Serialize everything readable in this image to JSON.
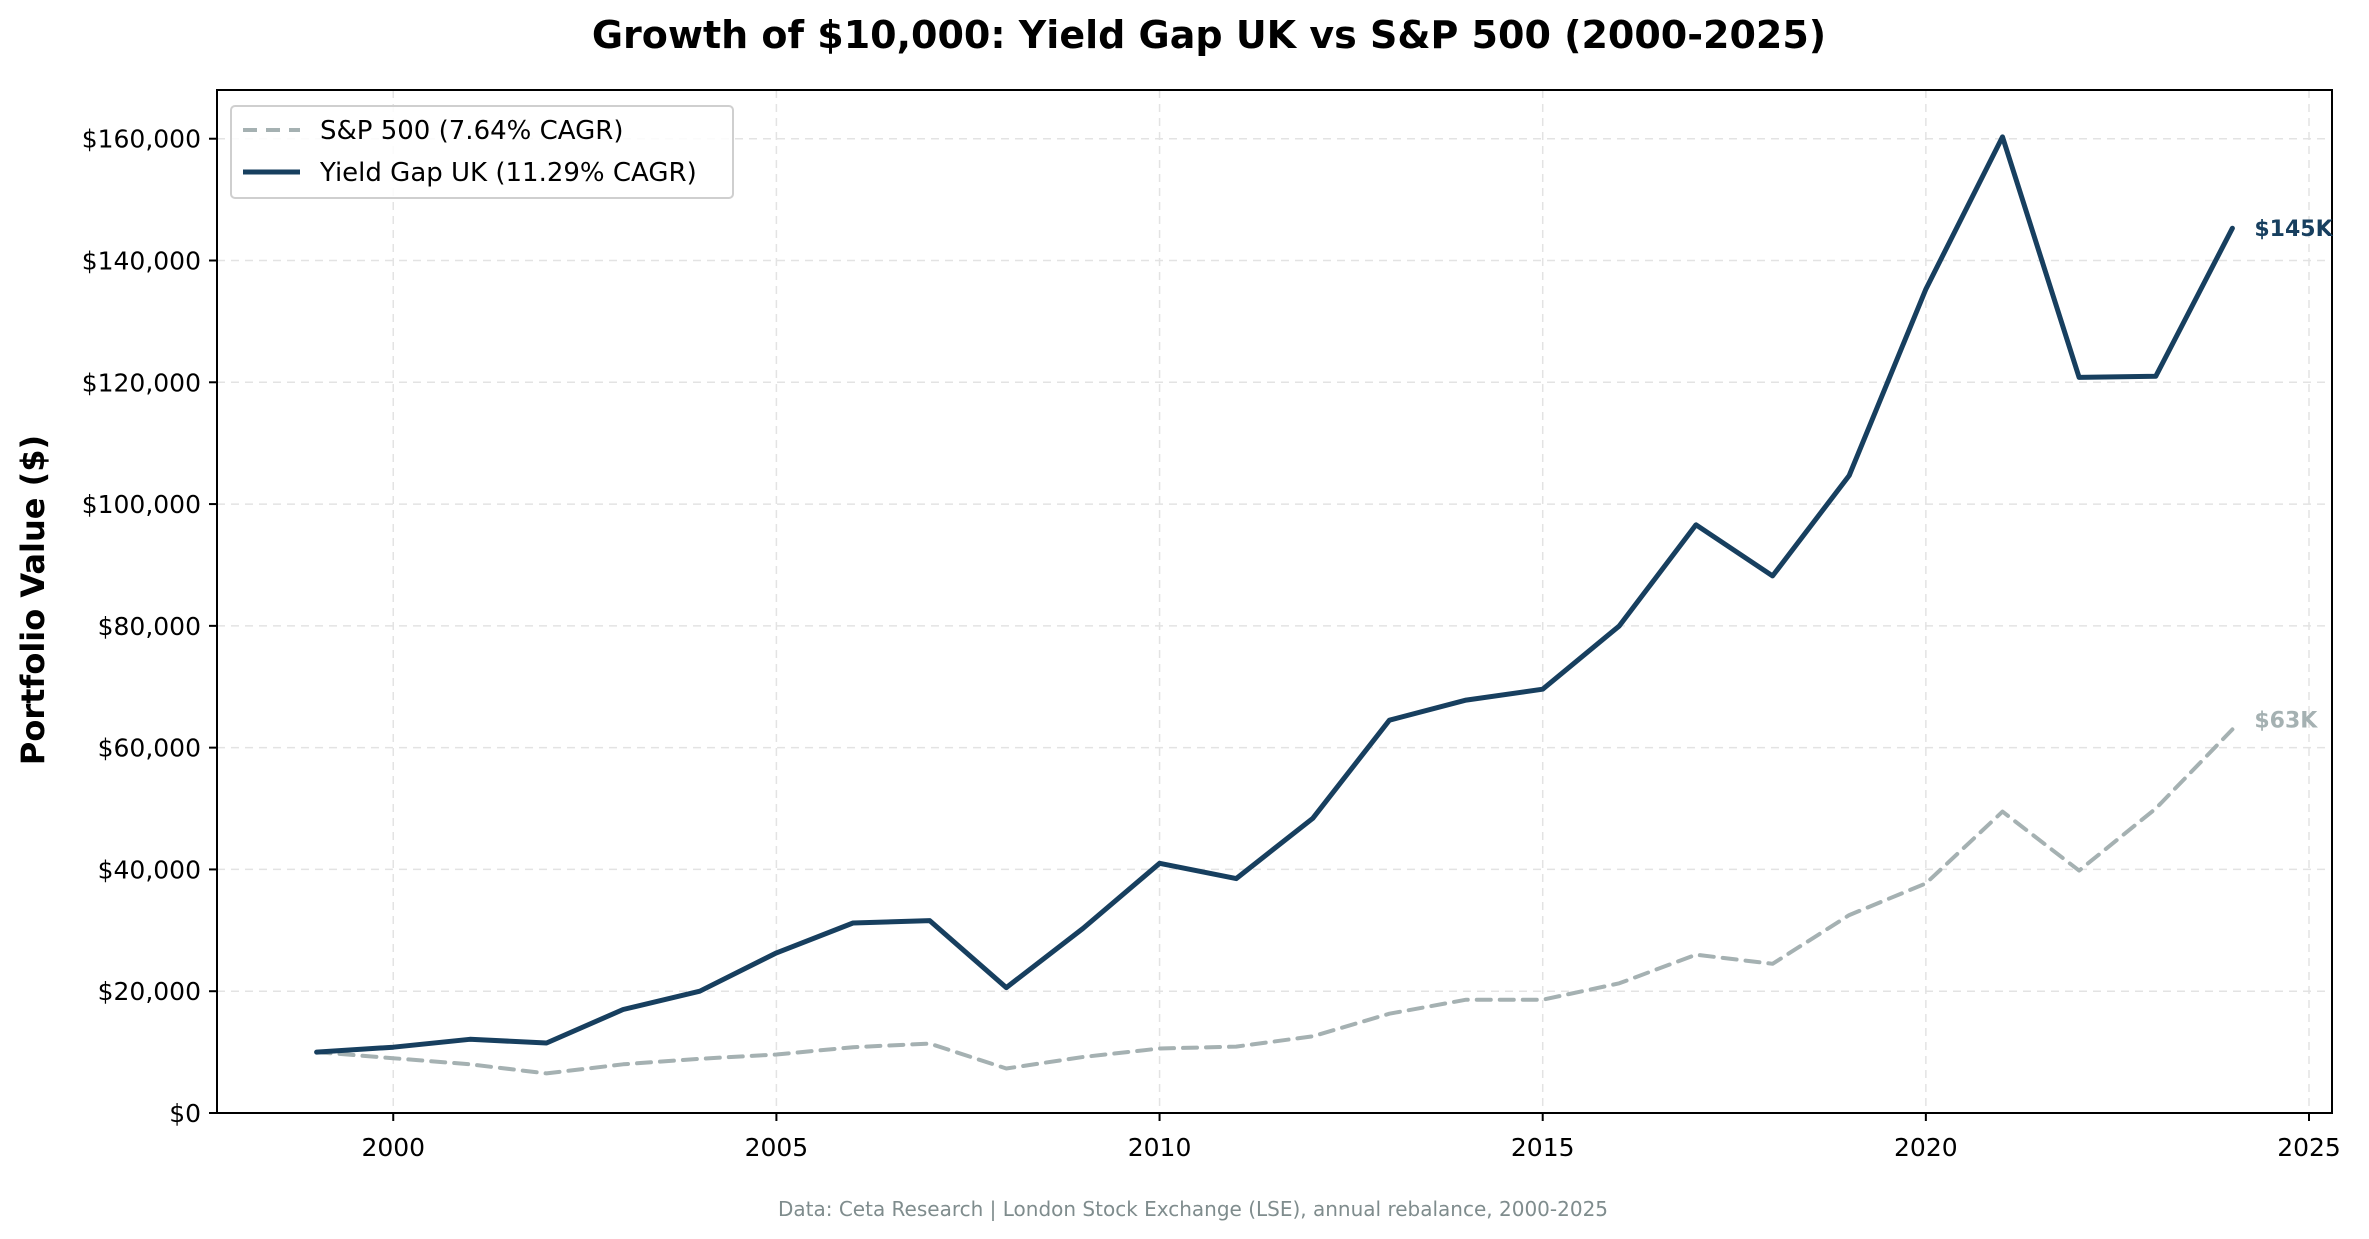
{
  "chart_data": {
    "type": "line",
    "title": "Growth of $10,000: Yield Gap UK vs S&P 500 (2000-2025)",
    "ylabel": "Portfolio Value ($)",
    "xlabel": "",
    "xlim": [
      1997.7,
      2025.3
    ],
    "ylim": [
      0,
      168000
    ],
    "x_ticks": [
      2000,
      2005,
      2010,
      2015,
      2020,
      2025
    ],
    "x_tick_labels": [
      "2000",
      "2005",
      "2010",
      "2015",
      "2020",
      "2025"
    ],
    "y_ticks": [
      0,
      20000,
      40000,
      60000,
      80000,
      100000,
      120000,
      140000,
      160000
    ],
    "y_tick_labels": [
      "$0",
      "$20,000",
      "$40,000",
      "$60,000",
      "$80,000",
      "$100,000",
      "$120,000",
      "$140,000",
      "$160,000"
    ],
    "grid": true,
    "legend_position": "top-left",
    "x": [
      1999,
      2000,
      2001,
      2002,
      2003,
      2004,
      2005,
      2006,
      2007,
      2008,
      2009,
      2010,
      2011,
      2012,
      2013,
      2014,
      2015,
      2016,
      2017,
      2018,
      2019,
      2020,
      2021,
      2022,
      2023,
      2024
    ],
    "series": [
      {
        "name": "S&P 500 (7.64% CAGR)",
        "color": "#a5b1b2",
        "dashed": true,
        "values": [
          10000,
          9000,
          8000,
          6500,
          8000,
          8900,
          9600,
          10800,
          11400,
          7300,
          9200,
          10600,
          10900,
          12600,
          16300,
          18600,
          18600,
          21300,
          26000,
          24500,
          32500,
          37700,
          49500,
          39800,
          50000,
          63000
        ],
        "end_label": "$63K"
      },
      {
        "name": "Yield Gap UK (11.29% CAGR)",
        "color": "#173f5f",
        "dashed": false,
        "values": [
          10000,
          10800,
          12100,
          11500,
          17000,
          20000,
          26300,
          31200,
          31600,
          20600,
          30300,
          41000,
          38500,
          48400,
          64500,
          67800,
          69600,
          80000,
          96600,
          88200,
          104700,
          135300,
          160300,
          120800,
          121000,
          145300
        ],
        "end_label": "$145K"
      }
    ],
    "source_note": "Data: Ceta Research | London Stock Exchange (LSE), annual rebalance, 2000-2025"
  }
}
